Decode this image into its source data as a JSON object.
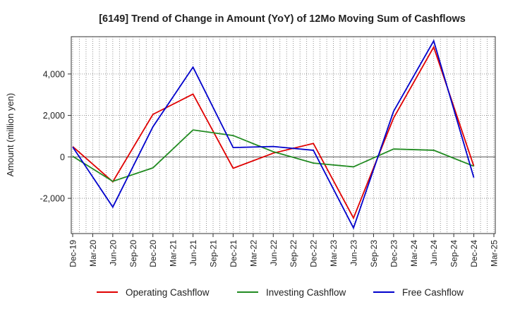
{
  "chart_data": {
    "type": "line",
    "title": "[6149]  Trend of Change in Amount (YoY) of 12Mo Moving Sum of Cashflows",
    "xlabel": "",
    "ylabel": "Amount (million yen)",
    "ylim": [
      -3700,
      5800
    ],
    "yticks": [
      -2000,
      0,
      2000,
      4000
    ],
    "ytick_labels": [
      "-2,000",
      "0",
      "2,000",
      "4,000"
    ],
    "categories": [
      "Dec-19",
      "Mar-20",
      "Jun-20",
      "Sep-20",
      "Dec-20",
      "Mar-21",
      "Jun-21",
      "Sep-21",
      "Dec-21",
      "Mar-22",
      "Jun-22",
      "Sep-22",
      "Dec-22",
      "Mar-23",
      "Jun-23",
      "Sep-23",
      "Dec-23",
      "Mar-24",
      "Jun-24",
      "Sep-24",
      "Dec-24",
      "Mar-25"
    ],
    "grid": true,
    "legend_position": "bottom",
    "series": [
      {
        "name": "Operating Cashflow",
        "color": "#e00000",
        "values": [
          500,
          null,
          -1200,
          null,
          2050,
          null,
          3030,
          null,
          -550,
          null,
          180,
          null,
          650,
          null,
          -2950,
          null,
          1880,
          null,
          5300,
          null,
          -450,
          null
        ]
      },
      {
        "name": "Investing Cashflow",
        "color": "#228b22",
        "values": [
          30,
          null,
          -1180,
          null,
          -530,
          null,
          1300,
          null,
          1030,
          null,
          250,
          null,
          -300,
          null,
          -480,
          null,
          380,
          null,
          320,
          null,
          -450,
          null
        ]
      },
      {
        "name": "Free Cashflow",
        "color": "#0000cc",
        "values": [
          480,
          null,
          -2420,
          null,
          1450,
          null,
          4330,
          null,
          450,
          null,
          500,
          null,
          320,
          null,
          -3430,
          null,
          2200,
          null,
          5600,
          null,
          -1000,
          null
        ]
      }
    ]
  }
}
